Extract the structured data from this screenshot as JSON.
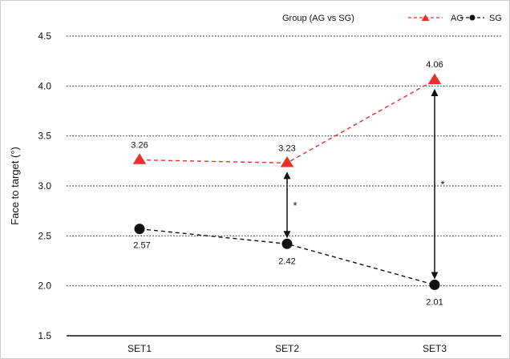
{
  "chart_data": {
    "type": "line",
    "categories": [
      "SET1",
      "SET2",
      "SET3"
    ],
    "series": [
      {
        "name": "AG",
        "values": [
          3.26,
          3.23,
          4.06
        ],
        "labels": [
          "3.26",
          "3.23",
          "4.06"
        ],
        "color": "#e8302a",
        "marker": "triangle",
        "line_style": "dashed"
      },
      {
        "name": "SG",
        "values": [
          2.57,
          2.42,
          2.01
        ],
        "labels": [
          "2.57",
          "2.42",
          "2.01"
        ],
        "color": "#111111",
        "marker": "circle",
        "line_style": "dashed"
      }
    ],
    "ylabel": "Face to target (°)",
    "ylim": [
      1.5,
      4.5
    ],
    "yticks": [
      1.5,
      2.0,
      2.5,
      3.0,
      3.5,
      4.0,
      4.5
    ],
    "ytick_labels": [
      "1.5",
      "2.0",
      "2.5",
      "3.0",
      "3.5",
      "4.0",
      "4.5"
    ],
    "grid": "horizontal dotted",
    "legend": {
      "title": "Group (AG vs SG)",
      "placement": "top-right"
    },
    "annotations": [
      {
        "category": "SET2",
        "from": 3.23,
        "to": 2.42,
        "text": "*"
      },
      {
        "category": "SET3",
        "from": 4.06,
        "to": 2.01,
        "text": "*"
      }
    ]
  }
}
